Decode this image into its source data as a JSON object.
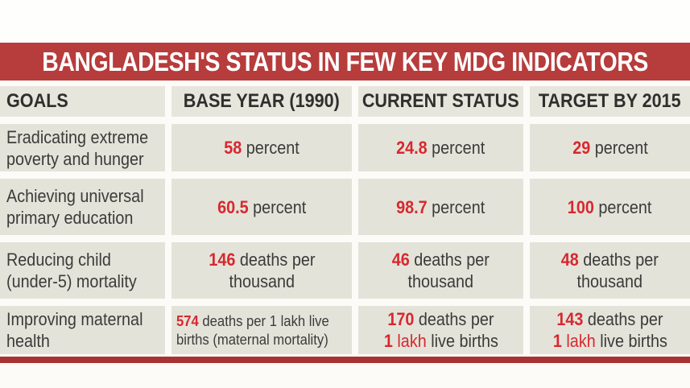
{
  "title": "BANGLADESH'S STATUS IN FEW KEY MDG INDICATORS",
  "colors": {
    "title_bar_red": "#b73c3c",
    "bottom_bar_red": "#a73333",
    "accent_red": "#d7282e",
    "cell_background": "#e4e3da",
    "text_dark": "#3b3b39"
  },
  "table": {
    "headers": [
      "GOALS",
      "BASE YEAR (1990)",
      "CURRENT STATUS",
      "TARGET BY 2015"
    ],
    "rows": [
      {
        "goal_lines": [
          "Eradicating extreme",
          "poverty and hunger"
        ],
        "base": [
          [
            [
              "58 ",
              "rb"
            ],
            [
              "percent",
              ""
            ]
          ]
        ],
        "current": [
          [
            [
              "24.8 ",
              "rb"
            ],
            [
              "percent",
              ""
            ]
          ]
        ],
        "target": [
          [
            [
              "29 ",
              "rb"
            ],
            [
              "percent",
              ""
            ]
          ]
        ]
      },
      {
        "goal_lines": [
          "Achieving universal",
          "primary education"
        ],
        "base": [
          [
            [
              "60.5 ",
              "rb"
            ],
            [
              "percent",
              ""
            ]
          ]
        ],
        "current": [
          [
            [
              "98.7 ",
              "rb"
            ],
            [
              "percent",
              ""
            ]
          ]
        ],
        "target": [
          [
            [
              "100 ",
              "rb"
            ],
            [
              "percent",
              ""
            ]
          ]
        ]
      },
      {
        "goal_lines": [
          "Reducing child",
          "(under-5) mortality"
        ],
        "base": [
          [
            [
              "146 ",
              "rb"
            ],
            [
              "deaths per",
              ""
            ]
          ],
          [
            [
              "thousand",
              ""
            ]
          ]
        ],
        "current": [
          [
            [
              "46 ",
              "rb"
            ],
            [
              "deaths per",
              ""
            ]
          ],
          [
            [
              "thousand",
              ""
            ]
          ]
        ],
        "target": [
          [
            [
              "48 ",
              "rb"
            ],
            [
              "deaths per",
              ""
            ]
          ],
          [
            [
              "thousand",
              ""
            ]
          ]
        ]
      },
      {
        "goal_lines": [
          "Improving maternal",
          "health"
        ],
        "base_small": true,
        "base": [
          [
            [
              "574 ",
              "rb"
            ],
            [
              "deaths per 1 lakh live",
              ""
            ]
          ],
          [
            [
              "births (maternal mortality)",
              ""
            ]
          ]
        ],
        "current": [
          [
            [
              "170 ",
              "rb"
            ],
            [
              "deaths per",
              ""
            ]
          ],
          [
            [
              "1 ",
              "rb"
            ],
            [
              "lakh ",
              "r"
            ],
            [
              "live births",
              ""
            ]
          ]
        ],
        "target": [
          [
            [
              "143 ",
              "rb"
            ],
            [
              "deaths per",
              ""
            ]
          ],
          [
            [
              "1 ",
              "rb"
            ],
            [
              "lakh ",
              "r"
            ],
            [
              "live births",
              ""
            ]
          ]
        ]
      }
    ]
  },
  "chart_data": {
    "type": "table",
    "title": "BANGLADESH'S STATUS IN FEW KEY MDG INDICATORS",
    "columns": [
      "GOALS",
      "BASE YEAR (1990)",
      "CURRENT STATUS",
      "TARGET BY 2015"
    ],
    "rows": [
      [
        "Eradicating extreme poverty and hunger",
        "58 percent",
        "24.8 percent",
        "29 percent"
      ],
      [
        "Achieving universal primary education",
        "60.5 percent",
        "98.7 percent",
        "100 percent"
      ],
      [
        "Reducing child (under-5) mortality",
        "146 deaths per thousand",
        "46 deaths per thousand",
        "48 deaths per thousand"
      ],
      [
        "Improving maternal health",
        "574 deaths per 1 lakh live births (maternal mortality)",
        "170 deaths per 1 lakh live births",
        "143 deaths per 1 lakh live births"
      ]
    ],
    "series": [
      {
        "name": "BASE YEAR (1990)",
        "values": [
          58,
          60.5,
          146,
          574
        ]
      },
      {
        "name": "CURRENT STATUS",
        "values": [
          24.8,
          98.7,
          46,
          170
        ]
      },
      {
        "name": "TARGET BY 2015",
        "values": [
          29,
          100,
          48,
          143
        ]
      }
    ],
    "categories": [
      "Eradicating extreme poverty and hunger",
      "Achieving universal primary education",
      "Reducing child (under-5) mortality",
      "Improving maternal health"
    ],
    "units": [
      "percent",
      "percent",
      "deaths per thousand",
      "deaths per 1 lakh live births"
    ]
  }
}
